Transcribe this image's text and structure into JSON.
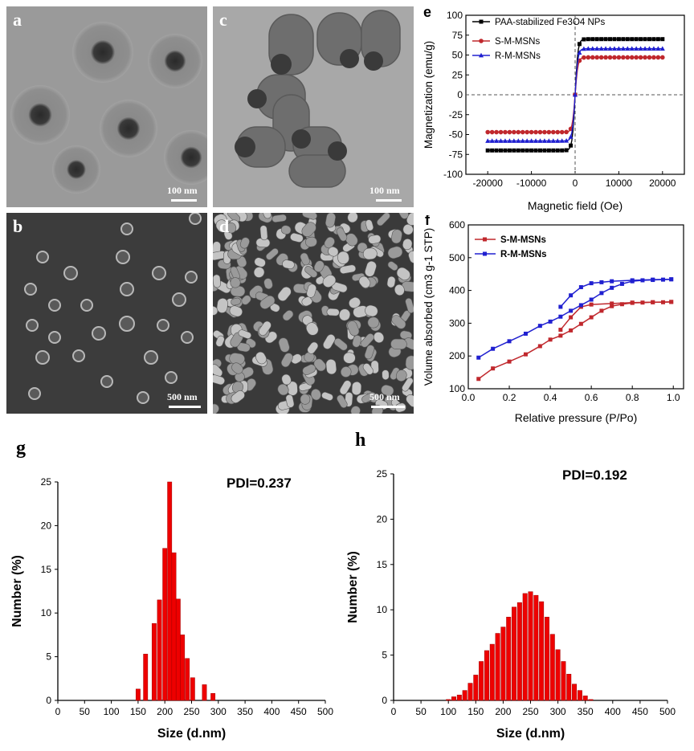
{
  "panels": {
    "a": {
      "label": "a",
      "scale": "100 nm"
    },
    "b": {
      "label": "b",
      "scale": "500 nm"
    },
    "c": {
      "label": "c",
      "scale": "100 nm"
    },
    "d": {
      "label": "d",
      "scale": "500 nm"
    },
    "e": {
      "label": "e"
    },
    "f": {
      "label": "f"
    },
    "g": {
      "label": "g"
    },
    "h": {
      "label": "h"
    }
  },
  "chart_data": [
    {
      "id": "e",
      "type": "line",
      "xlabel": "Magnetic field (Oe)",
      "ylabel": "Magnetization (emu/g)",
      "xlim": [
        -25000,
        25000
      ],
      "ylim": [
        -100,
        100
      ],
      "xticks": [
        -20000,
        -10000,
        0,
        10000,
        20000
      ],
      "yticks": [
        -100,
        -75,
        -50,
        -25,
        0,
        25,
        50,
        75,
        100
      ],
      "legend_position": "top-left",
      "series": [
        {
          "name": "PAA-stabilized Fe3O4 NPs",
          "color": "#000000",
          "marker": "square",
          "Ms": 70
        },
        {
          "name": "S-M-MSNs",
          "color": "#c0282d",
          "marker": "circle",
          "Ms": 47
        },
        {
          "name": "R-M-MSNs",
          "color": "#2020d0",
          "marker": "triangle",
          "Ms": 58
        }
      ]
    },
    {
      "id": "f",
      "type": "line",
      "xlabel": "Relative pressure (P/Po)",
      "ylabel": "Volume absorbed (cm3 g-1 STP)",
      "xlim": [
        0,
        1.05
      ],
      "ylim": [
        100,
        600
      ],
      "xticks": [
        0.0,
        0.2,
        0.4,
        0.6,
        0.8,
        1.0
      ],
      "yticks": [
        100,
        200,
        300,
        400,
        500,
        600
      ],
      "legend_position": "top-left",
      "series": [
        {
          "name": "S-M-MSNs",
          "color": "#c0282d",
          "adsorption": [
            [
              0.05,
              130
            ],
            [
              0.12,
              162
            ],
            [
              0.2,
              183
            ],
            [
              0.28,
              205
            ],
            [
              0.35,
              230
            ],
            [
              0.4,
              250
            ],
            [
              0.45,
              262
            ],
            [
              0.5,
              278
            ],
            [
              0.55,
              298
            ],
            [
              0.6,
              318
            ],
            [
              0.65,
              338
            ],
            [
              0.7,
              352
            ],
            [
              0.75,
              358
            ],
            [
              0.8,
              362
            ],
            [
              0.85,
              363
            ],
            [
              0.9,
              364
            ],
            [
              0.95,
              364
            ],
            [
              0.99,
              365
            ]
          ],
          "desorption": [
            [
              0.99,
              365
            ],
            [
              0.9,
              364
            ],
            [
              0.8,
              363
            ],
            [
              0.7,
              360
            ],
            [
              0.6,
              357
            ],
            [
              0.55,
              350
            ],
            [
              0.5,
              318
            ],
            [
              0.45,
              280
            ]
          ]
        },
        {
          "name": "R-M-MSNs",
          "color": "#2020d0",
          "adsorption": [
            [
              0.05,
              195
            ],
            [
              0.12,
              222
            ],
            [
              0.2,
              245
            ],
            [
              0.28,
              268
            ],
            [
              0.35,
              292
            ],
            [
              0.4,
              305
            ],
            [
              0.45,
              320
            ],
            [
              0.5,
              338
            ],
            [
              0.55,
              355
            ],
            [
              0.6,
              372
            ],
            [
              0.65,
              392
            ],
            [
              0.7,
              408
            ],
            [
              0.75,
              420
            ],
            [
              0.8,
              428
            ],
            [
              0.85,
              431
            ],
            [
              0.9,
              432
            ],
            [
              0.95,
              433
            ],
            [
              0.99,
              434
            ]
          ],
          "desorption": [
            [
              0.99,
              434
            ],
            [
              0.9,
              433
            ],
            [
              0.8,
              431
            ],
            [
              0.7,
              428
            ],
            [
              0.65,
              425
            ],
            [
              0.6,
              422
            ],
            [
              0.55,
              410
            ],
            [
              0.5,
              385
            ],
            [
              0.45,
              350
            ]
          ]
        }
      ]
    },
    {
      "id": "g",
      "type": "bar",
      "annotation": "PDI=0.237",
      "xlabel": "Size (d.nm)",
      "ylabel": "Number (%)",
      "xlim": [
        0,
        500
      ],
      "ylim": [
        0,
        25
      ],
      "xticks": [
        0,
        50,
        100,
        150,
        200,
        250,
        300,
        350,
        400,
        450,
        500
      ],
      "yticks": [
        0,
        5,
        10,
        15,
        20,
        25
      ],
      "bar_width": 8,
      "color": "#ee0000",
      "x": [
        150,
        164,
        180,
        190,
        200,
        209,
        217,
        225,
        233,
        242,
        252,
        274,
        290
      ],
      "values": [
        1.3,
        5.3,
        8.8,
        11.5,
        17.4,
        25,
        16.9,
        11.6,
        7.5,
        4.8,
        2.6,
        1.8,
        0.8
      ]
    },
    {
      "id": "h",
      "type": "bar",
      "annotation": "PDI=0.192",
      "xlabel": "Size (d.nm)",
      "ylabel": "Number (%)",
      "xlim": [
        0,
        500
      ],
      "ylim": [
        0,
        25
      ],
      "xticks": [
        0,
        50,
        100,
        150,
        200,
        250,
        300,
        350,
        400,
        450,
        500
      ],
      "yticks": [
        0,
        5,
        10,
        15,
        20,
        25
      ],
      "bar_width": 8,
      "color": "#ee0000",
      "x": [
        100,
        110,
        120,
        130,
        140,
        150,
        160,
        170,
        180,
        190,
        200,
        210,
        220,
        230,
        240,
        250,
        260,
        270,
        280,
        290,
        300,
        310,
        320,
        330,
        340,
        350,
        360
      ],
      "values": [
        0.1,
        0.4,
        0.6,
        1.1,
        1.9,
        2.8,
        4.3,
        5.5,
        6.2,
        7.4,
        8.1,
        9.2,
        10.3,
        10.8,
        11.8,
        12,
        11.6,
        10.9,
        9.2,
        7.3,
        5.6,
        4.3,
        2.9,
        1.8,
        1.1,
        0.5,
        0.1
      ]
    }
  ]
}
